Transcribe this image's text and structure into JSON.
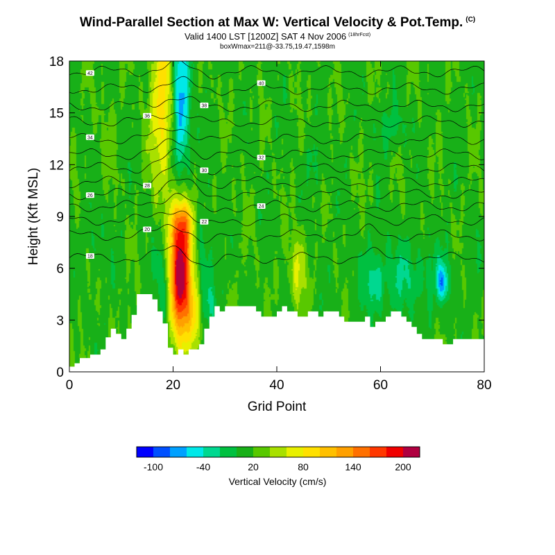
{
  "header": {
    "title": "Wind-Parallel Section at Max W: Vertical Velocity & Pot.Temp.",
    "title_mark": "(C)",
    "valid_line": "Valid 1400 LST [1200Z] SAT 4 Nov 2006",
    "forecast_tag": "(18hrFcst)",
    "box_line": "boxWmax=211@-33.75,19.47,1598m"
  },
  "chart_data": {
    "type": "heatmap",
    "title": "Wind-Parallel Section at Max W: Vertical Velocity & Pot.Temp.",
    "xlabel": "Grid Point",
    "ylabel": "Height (Kft MSL)",
    "xlim": [
      0,
      80
    ],
    "ylim": [
      0,
      18
    ],
    "x_ticks": [
      0,
      20,
      40,
      60,
      80
    ],
    "y_ticks": [
      0,
      3,
      6,
      9,
      12,
      15,
      18
    ],
    "colorbar": {
      "label": "Vertical Velocity (cm/s)",
      "tick_labels": [
        "-100",
        "-40",
        "20",
        "80",
        "140",
        "200"
      ],
      "tick_values": [
        -100,
        -40,
        20,
        80,
        140,
        200
      ],
      "colors": [
        "#0000ff",
        "#0050ff",
        "#00a0ff",
        "#00e8e8",
        "#00d890",
        "#00c040",
        "#18b018",
        "#58c800",
        "#a8e000",
        "#e8f000",
        "#ffe000",
        "#ffc000",
        "#ffa000",
        "#ff7000",
        "#ff3800",
        "#f00000",
        "#b00040"
      ]
    },
    "terrain_kft": [
      [
        0,
        0.3
      ],
      [
        1,
        0.3
      ],
      [
        1,
        0.5
      ],
      [
        2,
        0.5
      ],
      [
        2,
        0.8
      ],
      [
        4,
        0.8
      ],
      [
        4,
        1
      ],
      [
        6,
        1
      ],
      [
        6,
        1.3
      ],
      [
        7,
        1.3
      ],
      [
        7,
        2
      ],
      [
        8,
        2
      ],
      [
        8,
        2.5
      ],
      [
        9,
        2.5
      ],
      [
        9,
        2.2
      ],
      [
        10,
        2.2
      ],
      [
        10,
        1.9
      ],
      [
        11,
        1.9
      ],
      [
        11,
        2.5
      ],
      [
        12,
        2.5
      ],
      [
        12,
        3.3
      ],
      [
        13,
        3.3
      ],
      [
        13,
        4.5
      ],
      [
        16,
        4.5
      ],
      [
        16,
        4.2
      ],
      [
        17,
        4.2
      ],
      [
        17,
        3.5
      ],
      [
        18,
        3.5
      ],
      [
        18,
        2.8
      ],
      [
        19,
        2.8
      ],
      [
        19,
        1.4
      ],
      [
        20,
        1.4
      ],
      [
        20,
        1
      ],
      [
        21,
        1
      ],
      [
        21,
        1.3
      ],
      [
        22,
        1.3
      ],
      [
        22,
        1
      ],
      [
        23,
        1
      ],
      [
        23,
        1.3
      ],
      [
        25,
        1.3
      ],
      [
        25,
        1.6
      ],
      [
        26,
        1.6
      ],
      [
        26,
        2.5
      ],
      [
        27,
        2.5
      ],
      [
        27,
        3.2
      ],
      [
        28,
        3.2
      ],
      [
        28,
        3.8
      ],
      [
        29,
        3.8
      ],
      [
        29,
        3.5
      ],
      [
        30,
        3.5
      ],
      [
        30,
        3.8
      ],
      [
        36,
        3.8
      ],
      [
        36,
        3.5
      ],
      [
        37,
        3.5
      ],
      [
        37,
        3.2
      ],
      [
        40,
        3.2
      ],
      [
        40,
        3.5
      ],
      [
        41,
        3.5
      ],
      [
        41,
        3.8
      ],
      [
        42,
        3.8
      ],
      [
        42,
        3.5
      ],
      [
        44,
        3.5
      ],
      [
        44,
        3.2
      ],
      [
        46,
        3.2
      ],
      [
        46,
        3.5
      ],
      [
        48,
        3.5
      ],
      [
        48,
        3.2
      ],
      [
        49,
        3.2
      ],
      [
        49,
        3.5
      ],
      [
        52,
        3.5
      ],
      [
        52,
        3.2
      ],
      [
        53,
        3.2
      ],
      [
        53,
        2.9
      ],
      [
        57,
        2.9
      ],
      [
        57,
        3.2
      ],
      [
        58,
        3.2
      ],
      [
        58,
        2.6
      ],
      [
        59,
        2.6
      ],
      [
        59,
        2.9
      ],
      [
        61,
        2.9
      ],
      [
        61,
        3.2
      ],
      [
        62,
        3.2
      ],
      [
        62,
        3.5
      ],
      [
        64,
        3.5
      ],
      [
        64,
        3.2
      ],
      [
        65,
        3.2
      ],
      [
        65,
        2.9
      ],
      [
        66,
        2.9
      ],
      [
        66,
        2.6
      ],
      [
        67,
        2.6
      ],
      [
        67,
        2.2
      ],
      [
        68,
        2.2
      ],
      [
        68,
        1.9
      ],
      [
        72,
        1.9
      ],
      [
        72,
        1.6
      ],
      [
        74,
        1.6
      ],
      [
        74,
        1.9
      ],
      [
        80,
        1.9
      ]
    ],
    "w_field_anomalies": [
      {
        "name": "updraft-tower-upper",
        "x": 18,
        "y": 15.5,
        "sx": 1.6,
        "sy": 3.5,
        "w": 80
      },
      {
        "name": "downdraft-tower-upper",
        "x": 21.5,
        "y": 15.5,
        "sx": 1.2,
        "sy": 3.2,
        "w": -90
      },
      {
        "name": "main-updraft-core",
        "x": 21.5,
        "y": 5.5,
        "sx": 1.6,
        "sy": 2.6,
        "w": 210
      },
      {
        "name": "main-updraft-upper",
        "x": 22,
        "y": 8.6,
        "sx": 1.3,
        "sy": 0.9,
        "w": 70
      },
      {
        "name": "downdraft-left",
        "x": 18.2,
        "y": 5.2,
        "sx": 1.1,
        "sy": 1.8,
        "w": -45
      },
      {
        "name": "downdraft-right",
        "x": 26,
        "y": 6.2,
        "sx": 1.4,
        "sy": 2.2,
        "w": -30
      },
      {
        "name": "downdraft-right-low",
        "x": 27.5,
        "y": 3.8,
        "sx": 1.2,
        "sy": 1,
        "w": -20
      },
      {
        "name": "lift-right-low",
        "x": 24.5,
        "y": 3.2,
        "sx": 0.8,
        "sy": 1.2,
        "w": 40
      },
      {
        "name": "sink-region-right",
        "x": 65,
        "y": 5.5,
        "sx": 6,
        "sy": 1.5,
        "w": -30
      },
      {
        "name": "sink-core-right",
        "x": 72,
        "y": 5.2,
        "sx": 0.7,
        "sy": 0.7,
        "w": -75
      },
      {
        "name": "lift-mid",
        "x": 44,
        "y": 5.8,
        "sx": 1,
        "sy": 1.5,
        "w": 50
      },
      {
        "name": "sink-near-60",
        "x": 59,
        "y": 5,
        "sx": 1.2,
        "sy": 1.2,
        "w": -30
      },
      {
        "name": "sink-upper-right",
        "x": 62,
        "y": 14.2,
        "sx": 2.5,
        "sy": 0.8,
        "w": -25
      },
      {
        "name": "sink-upper-mid",
        "x": 47.5,
        "y": 12,
        "sx": 1.2,
        "sy": 1.1,
        "w": -20
      },
      {
        "name": "sink-left-mid",
        "x": 5,
        "y": 7.5,
        "sx": 1.2,
        "sy": 1.2,
        "w": -18
      },
      {
        "name": "lift-upper-left",
        "x": 7,
        "y": 14,
        "sx": 1.2,
        "sy": 2,
        "w": 10
      }
    ],
    "theta_isentropes": [
      {
        "theta": 18,
        "base_kft": 6.6,
        "label": "18"
      },
      {
        "theta": 20,
        "base_kft": 7.9,
        "label": "20"
      },
      {
        "theta": 22,
        "base_kft": 8.8,
        "label": "22"
      },
      {
        "theta": 24,
        "base_kft": 9.6,
        "label": "24"
      },
      {
        "theta": 26,
        "base_kft": 10.3,
        "label": "26"
      },
      {
        "theta": 28,
        "base_kft": 11.0,
        "label": "28"
      },
      {
        "theta": 30,
        "base_kft": 11.8,
        "label": "30"
      },
      {
        "theta": 32,
        "base_kft": 12.6,
        "label": "32"
      },
      {
        "theta": 34,
        "base_kft": 13.5,
        "label": "34"
      },
      {
        "theta": 36,
        "base_kft": 14.5,
        "label": "36"
      },
      {
        "theta": 38,
        "base_kft": 15.4,
        "label": "38"
      },
      {
        "theta": 40,
        "base_kft": 16.4,
        "label": "40"
      },
      {
        "theta": 42,
        "base_kft": 17.4,
        "label": "42"
      }
    ]
  }
}
